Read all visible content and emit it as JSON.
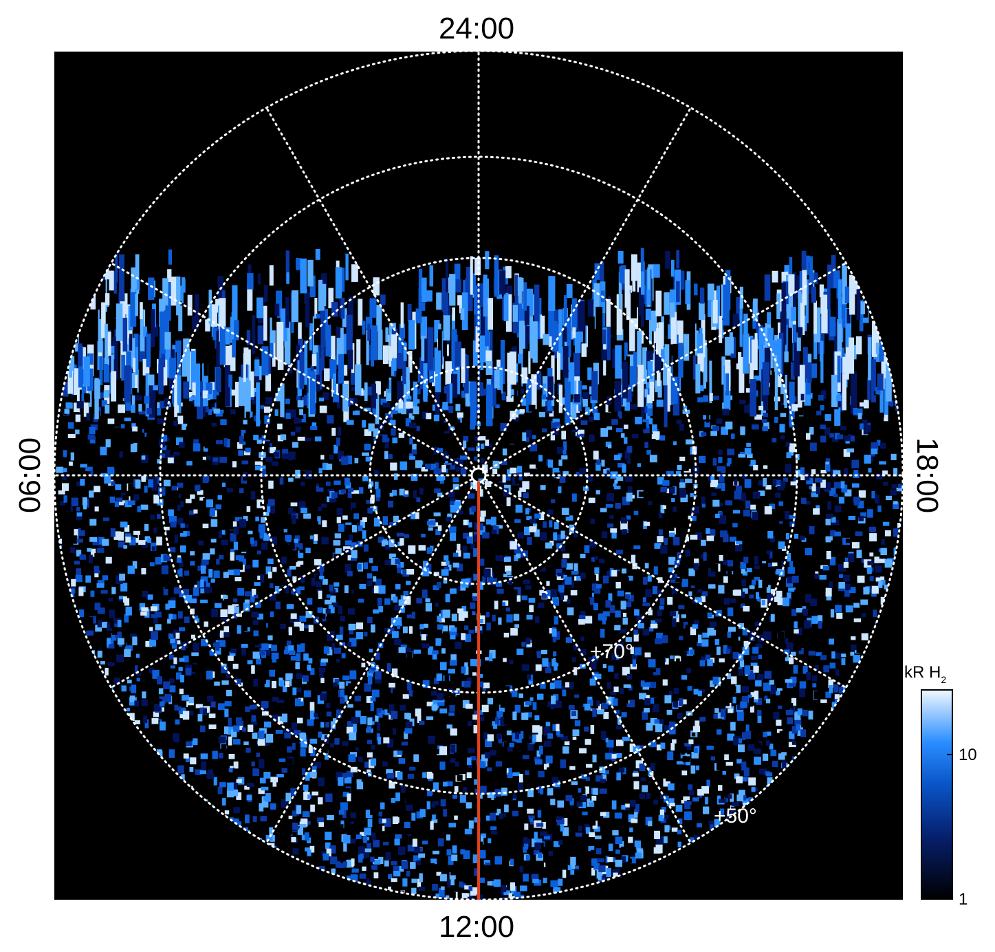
{
  "map": {
    "local_time_labels": {
      "top": "24:00",
      "bottom": "12:00",
      "left": "06:00",
      "right": "18:00"
    },
    "latitude_labels": [
      "+70°",
      "+50°"
    ],
    "colorbar": {
      "label": "kR H",
      "label_subscript": "2",
      "lim": [
        1,
        28
      ],
      "ticks": [
        1,
        10
      ],
      "log": true
    }
  }
}
